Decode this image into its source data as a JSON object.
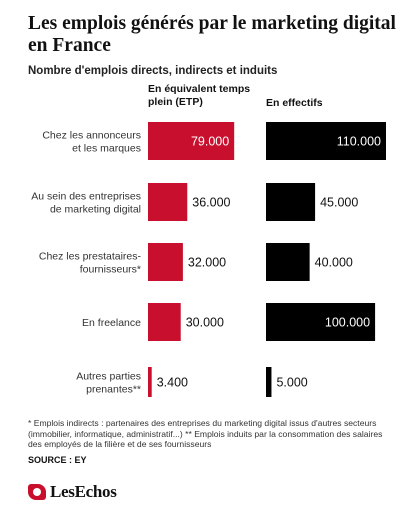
{
  "title": "Les emplois générés par le marketing digital en France",
  "subtitle": "Nombre d'emplois directs, indirects et induits",
  "footnote": "* Emplois indirects : partenaires des entreprises du marketing digital issus d'autres secteurs (immobilier, informatique, administratif...) ** Emplois induits par la consommation des salaires des employés de la filière et de ses fournisseurs",
  "source": "SOURCE : EY",
  "logo_text": "LesEchos",
  "colors": {
    "etp": "#c8102e",
    "effectifs": "#000000"
  },
  "chart_data": {
    "type": "bar",
    "orientation": "horizontal",
    "categories": [
      [
        "Chez les annonceurs",
        "et les marques"
      ],
      [
        "Au sein des entreprises",
        "de marketing digital"
      ],
      [
        "Chez les prestataires-",
        "fournisseurs*"
      ],
      [
        "En freelance"
      ],
      [
        "Autres parties",
        "prenantes**"
      ]
    ],
    "series": [
      {
        "name": "En équivalent temps plein (ETP)",
        "values": [
          79000,
          36000,
          32000,
          30000,
          3400
        ],
        "labels": [
          "79.000",
          "36.000",
          "32.000",
          "30.000",
          "3.400"
        ]
      },
      {
        "name": "En effectifs",
        "values": [
          110000,
          45000,
          40000,
          100000,
          5000
        ],
        "labels": [
          "110.000",
          "45.000",
          "40.000",
          "100.000",
          "5.000"
        ]
      }
    ],
    "xlim": [
      0,
      110000
    ],
    "grid": false,
    "legend": "none"
  }
}
